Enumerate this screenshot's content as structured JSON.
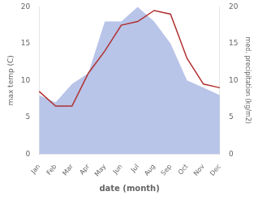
{
  "chart_data": {
    "type": "line",
    "categories": [
      "Jan",
      "Feb",
      "Mar",
      "Apr",
      "May",
      "Jun",
      "Jul",
      "Aug",
      "Sep",
      "Oct",
      "Nov",
      "Dec"
    ],
    "series": [
      {
        "type": "area",
        "color": "#b8c4e8",
        "axis": "y2",
        "values": [
          8.0,
          7.0,
          9.5,
          11.0,
          18.0,
          18.0,
          20.0,
          18.0,
          15.0,
          10.0,
          9.0,
          8.0
        ]
      },
      {
        "type": "line",
        "color": "#b03030",
        "values": [
          8.5,
          6.5,
          6.5,
          11.0,
          14.0,
          17.5,
          18.0,
          19.5,
          19.0,
          13.0,
          9.5,
          9.0
        ]
      }
    ],
    "xlabel": "date (month)",
    "ylabel": "max temp (C)",
    "y2label": "med. precipitation (kg/m2)",
    "ylim": [
      0,
      20
    ],
    "yticks": [
      0,
      5,
      10,
      15,
      20
    ],
    "y2lim": [
      0,
      20
    ],
    "y2ticks": [
      0,
      5,
      10,
      15,
      20
    ],
    "grid": false
  }
}
